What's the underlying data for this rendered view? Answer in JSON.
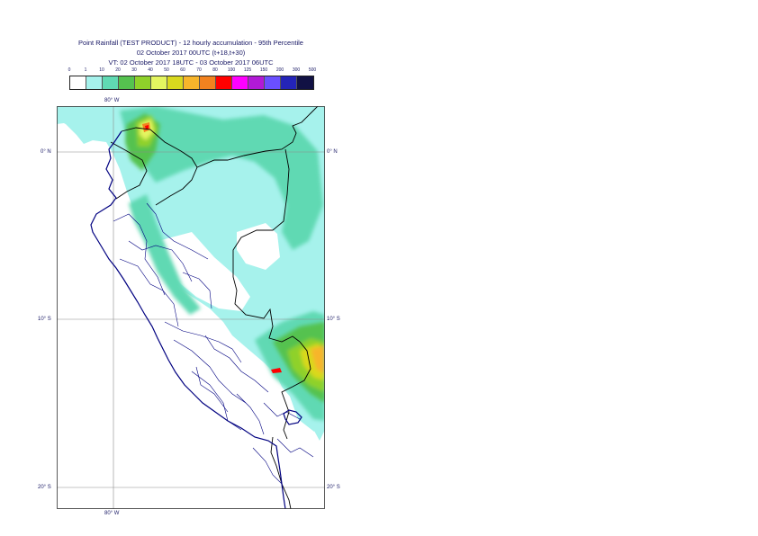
{
  "title": {
    "line1": "Point Rainfall (TEST PRODUCT) - 12 hourly accumulation - 95th Percentile",
    "line2": "02 October 2017 00UTC (t+18,t+30)",
    "line3": "VT: 02 October 2017 18UTC - 03 October 2017 06UTC"
  },
  "legend": {
    "ticks": [
      "0",
      "1",
      "10",
      "20",
      "30",
      "40",
      "50",
      "60",
      "70",
      "80",
      "100",
      "125",
      "150",
      "200",
      "300",
      "500"
    ],
    "colors": [
      "#ffffff",
      "#a6f2ec",
      "#60d9b3",
      "#55c24f",
      "#8fd12a",
      "#e4f560",
      "#d9d91e",
      "#f7b52b",
      "#f2821f",
      "#ff0000",
      "#ff00ff",
      "#b21ad6",
      "#6a4fff",
      "#2424b8",
      "#111144"
    ]
  },
  "axes": {
    "lon_top": "80° W",
    "lon_bottom": "80° W",
    "lat_left": [
      "0° N",
      "10° S",
      "20° S"
    ],
    "lat_right": [
      "0° N",
      "10° S",
      "20° S"
    ]
  },
  "colors": {
    "coast": "#000080",
    "border": "#000000",
    "admin": "#000080",
    "grid": "#8c8c8c"
  }
}
